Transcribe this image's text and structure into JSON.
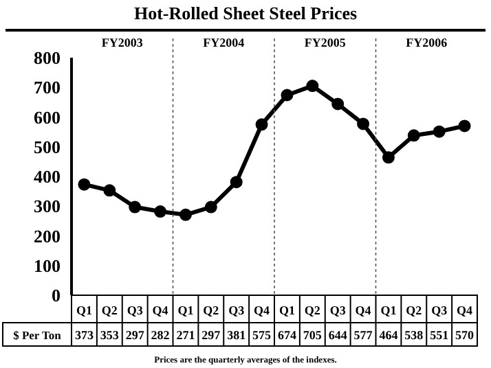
{
  "chart_data": {
    "type": "line",
    "title": "Hot-Rolled Sheet Steel Prices",
    "ylabel": "$ Per Ton",
    "categories": [
      "Q1",
      "Q2",
      "Q3",
      "Q4",
      "Q1",
      "Q2",
      "Q3",
      "Q4",
      "Q1",
      "Q2",
      "Q3",
      "Q4",
      "Q1",
      "Q2",
      "Q3",
      "Q4"
    ],
    "series": [
      {
        "color": "#000000",
        "values": [
          373,
          353,
          297,
          282,
          271,
          297,
          381,
          575,
          674,
          705,
          644,
          577,
          464,
          538,
          551,
          570
        ]
      }
    ],
    "ylim": [
      0,
      800
    ],
    "yticks": [
      0,
      100,
      200,
      300,
      400,
      500,
      600,
      700,
      800
    ],
    "marker": "circle",
    "line_style": "solid",
    "grid": false,
    "data_labels": true,
    "annotations": [
      "FY2003",
      "FY2004",
      "FY2005",
      "FY2006",
      "Prices are the quarterly averages of the indexes."
    ]
  }
}
